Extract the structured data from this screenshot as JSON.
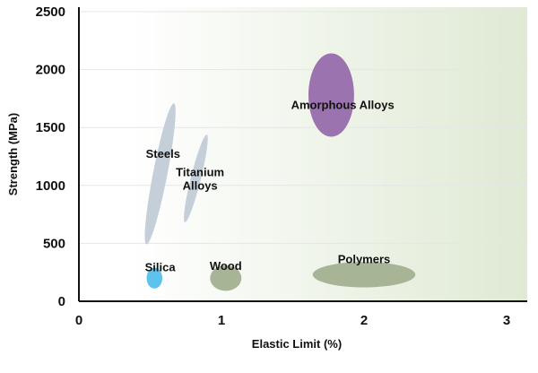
{
  "chart_data": {
    "type": "scatter",
    "title": "",
    "xlabel": "Elastic Limit (%)",
    "ylabel": "Strength (MPa)",
    "xlim": [
      0,
      3.2
    ],
    "ylim": [
      0,
      2600
    ],
    "xticks": [
      0,
      1,
      2,
      3
    ],
    "yticks": [
      0,
      500,
      1000,
      1500,
      2000,
      2500
    ],
    "grid": true,
    "background_gradient": [
      "#ffffff",
      "#dfe9d4"
    ],
    "regions": [
      {
        "name": "Steels",
        "cx": 0.57,
        "cy": 1100,
        "rx": 0.05,
        "ry": 620,
        "angle_deg": 11,
        "color": "#c5cfd9",
        "label_lines": [
          "Steels"
        ],
        "label_x": 0.59,
        "label_y": 1240
      },
      {
        "name": "Titanium Alloys",
        "cx": 0.82,
        "cy": 1060,
        "rx": 0.035,
        "ry": 390,
        "angle_deg": 14,
        "color": "#c5cfd9",
        "label_lines": [
          "Titanium",
          "Alloys"
        ],
        "label_x": 0.85,
        "label_y": 1080
      },
      {
        "name": "Amorphous Alloys",
        "cx": 1.77,
        "cy": 1780,
        "rx": 0.16,
        "ry": 360,
        "angle_deg": 0,
        "color": "#9b73ae",
        "label_lines": [
          "Amorphous Alloys"
        ],
        "label_x": 1.85,
        "label_y": 1660
      },
      {
        "name": "Silica",
        "cx": 0.53,
        "cy": 200,
        "rx": 0.055,
        "ry": 90,
        "angle_deg": 0,
        "color": "#5ec3ec",
        "label_lines": [
          "Silica"
        ],
        "label_x": 0.57,
        "label_y": 260
      },
      {
        "name": "Wood",
        "cx": 1.03,
        "cy": 200,
        "rx": 0.11,
        "ry": 110,
        "angle_deg": 0,
        "color": "#a7b596",
        "label_lines": [
          "Wood"
        ],
        "label_x": 1.03,
        "label_y": 270
      },
      {
        "name": "Polymers",
        "cx": 2.0,
        "cy": 230,
        "rx": 0.36,
        "ry": 110,
        "angle_deg": 0,
        "color": "#a7b596",
        "label_lines": [
          "Polymers"
        ],
        "label_x": 2.0,
        "label_y": 330
      }
    ]
  }
}
